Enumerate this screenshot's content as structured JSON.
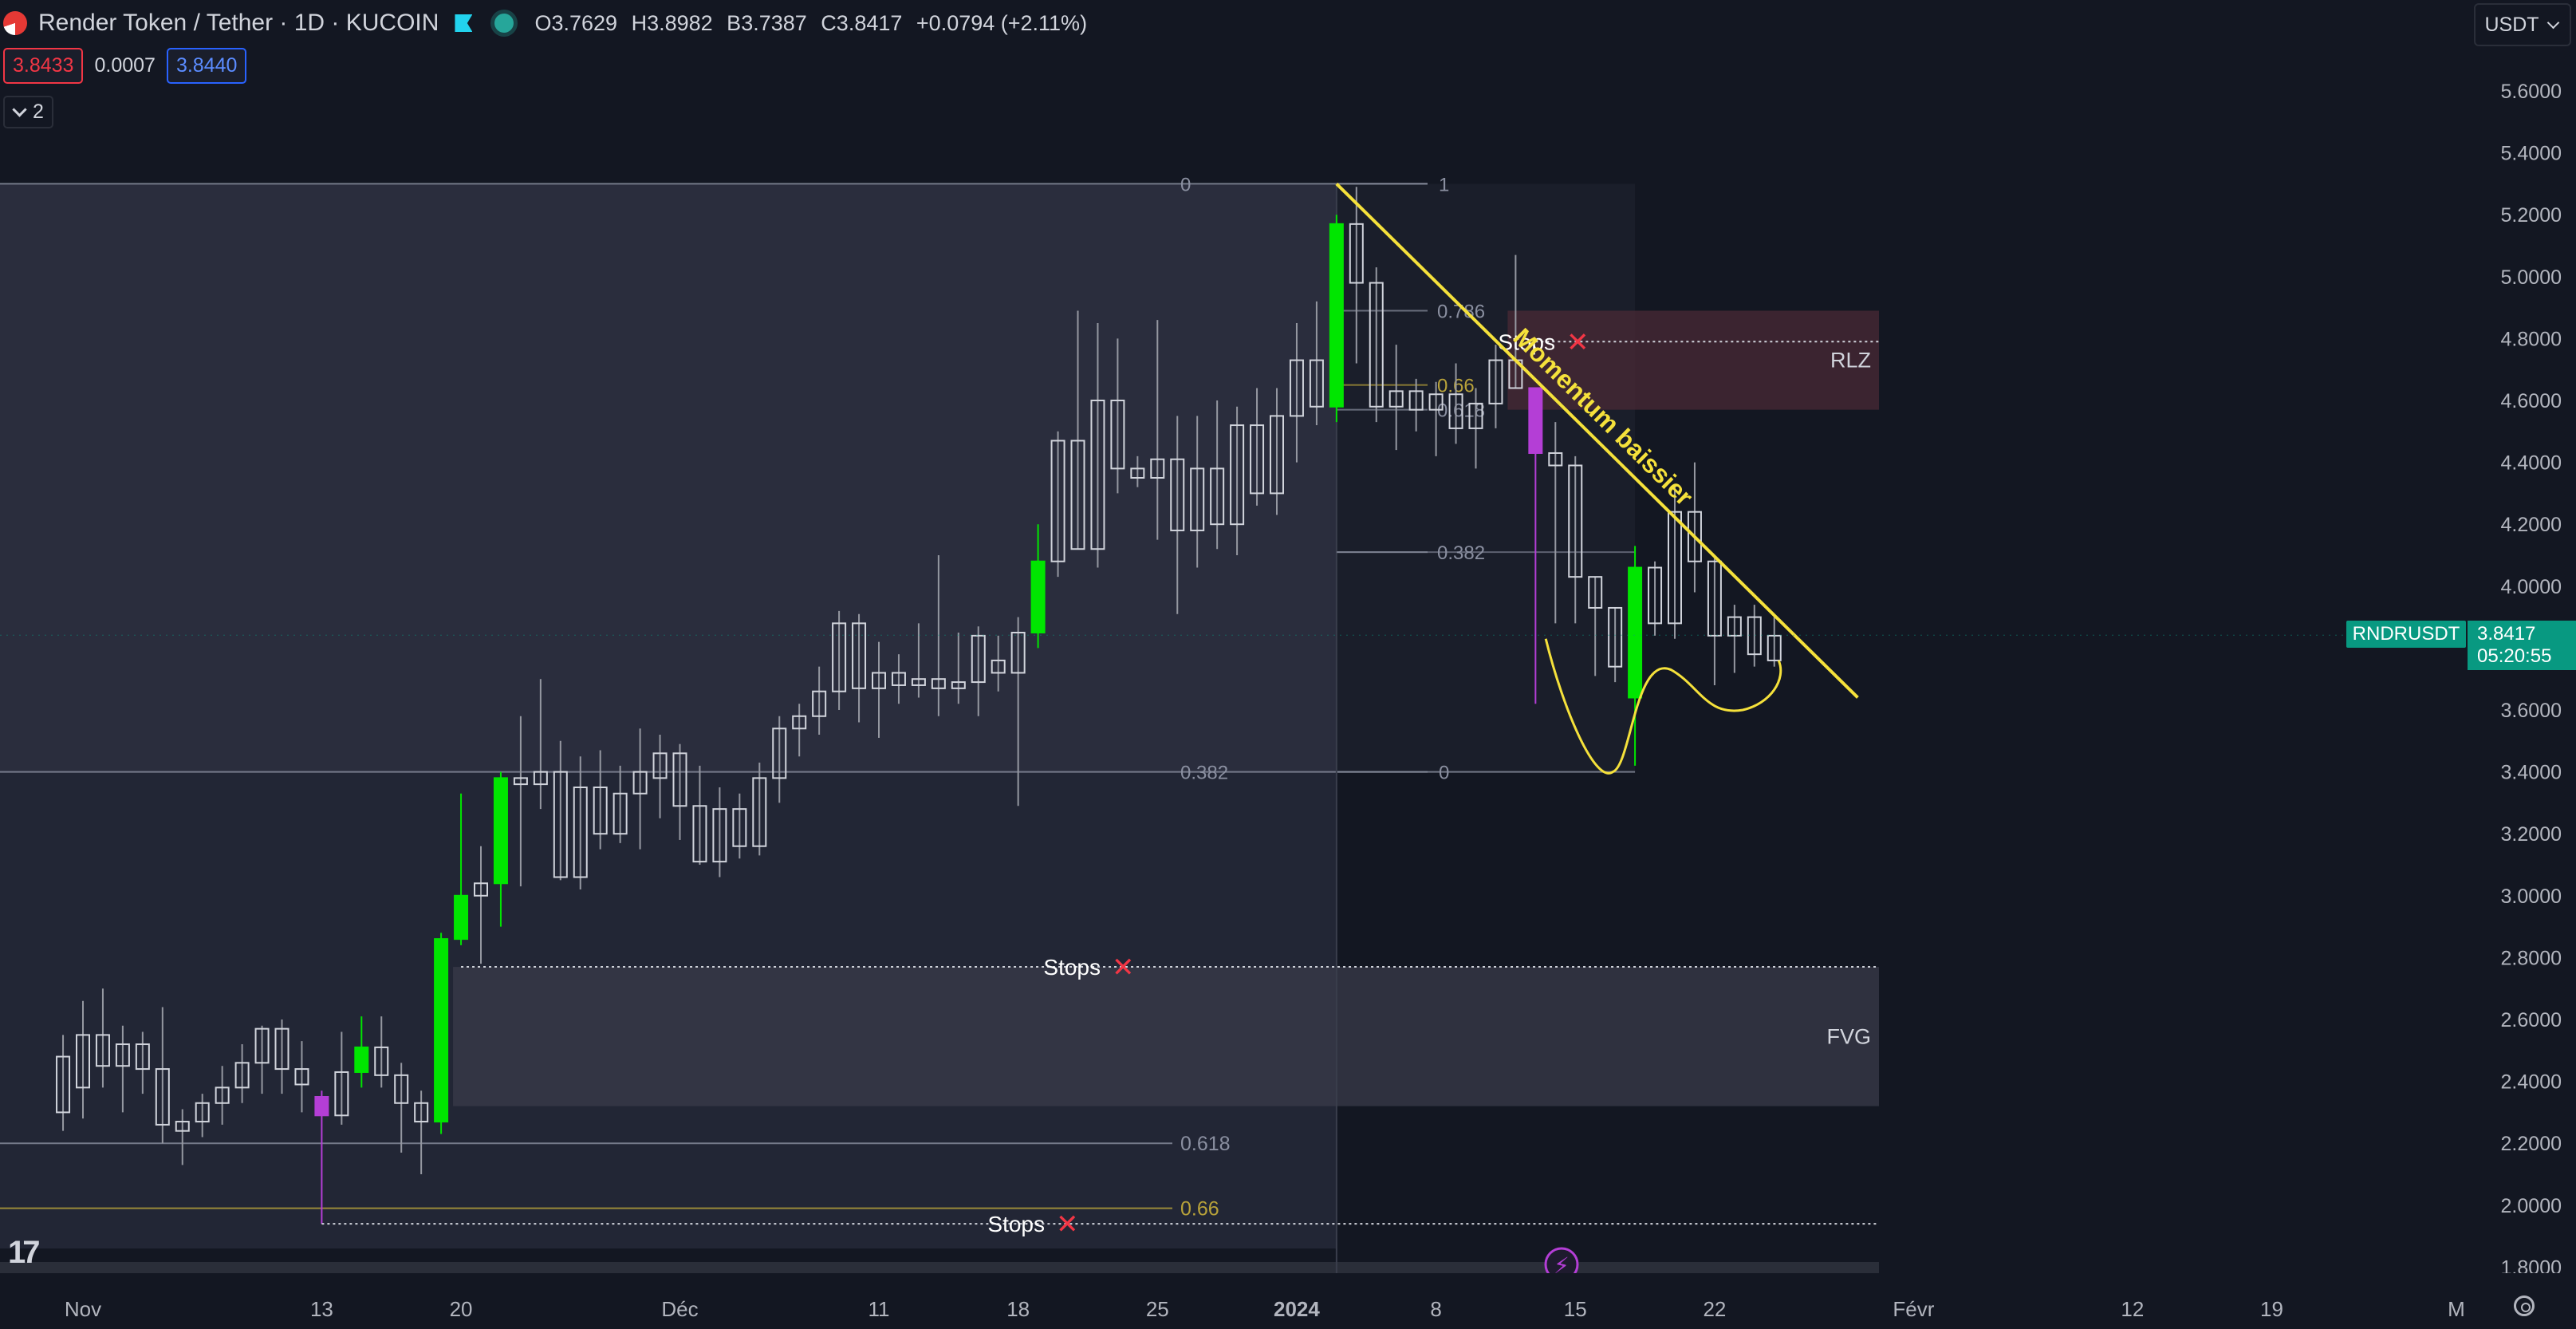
{
  "header": {
    "title": "Render Token / Tether · 1D · KUCOIN",
    "ohlc": {
      "o_label": "O",
      "o_value": "3.7629",
      "h_label": "H",
      "h_value": "3.8982",
      "b_label": "B",
      "b_value": "3.7387",
      "c_label": "C",
      "c_value": "3.8417",
      "change": "+0.0794 (+2.11%)"
    },
    "bid": "3.8433",
    "spread": "0.0007",
    "ask": "3.8440",
    "collapse_label": "2",
    "currency": "USDT"
  },
  "last_price": {
    "symbol": "RNDRUSDT",
    "price": "3.8417",
    "countdown": "05:20:55",
    "value": 3.8417
  },
  "colors": {
    "background": "#131722",
    "bull": "#00e600",
    "neutral_candle": "#d1d4dc",
    "purple_candle": "#b43ed6",
    "trend_line": "#f5e13b",
    "rlz_zone": "#4a2a36",
    "fvg_zone": "#3a3b4a",
    "last_price": "#089981"
  },
  "chart_data": {
    "type": "candlestick",
    "timeframe": "1D",
    "y_axis_ticks": [
      "5.6000",
      "5.4000",
      "5.2000",
      "5.0000",
      "4.8000",
      "4.6000",
      "4.4000",
      "4.2000",
      "4.0000",
      "3.8000",
      "3.6000",
      "3.4000",
      "3.2000",
      "3.0000",
      "2.8000",
      "2.6000",
      "2.4000",
      "2.2000",
      "2.0000",
      "1.8000"
    ],
    "ylim": [
      1.76,
      5.74
    ],
    "x_axis_labels": [
      {
        "label": "Nov",
        "date": "2023-11-01"
      },
      {
        "label": "13",
        "date": "2023-11-13"
      },
      {
        "label": "20",
        "date": "2023-11-20"
      },
      {
        "label": "Déc",
        "date": "2023-12-01"
      },
      {
        "label": "11",
        "date": "2023-12-11"
      },
      {
        "label": "18",
        "date": "2023-12-18"
      },
      {
        "label": "25",
        "date": "2023-12-25"
      },
      {
        "label": "2024",
        "date": "2024-01-01"
      },
      {
        "label": "8",
        "date": "2024-01-08"
      },
      {
        "label": "15",
        "date": "2024-01-15"
      },
      {
        "label": "22",
        "date": "2024-01-22"
      },
      {
        "label": "Févr",
        "date": "2024-02-01"
      },
      {
        "label": "12",
        "date": "2024-02-12"
      },
      {
        "label": "19",
        "date": "2024-02-19"
      },
      {
        "label": "M",
        "date": "2024-03-01"
      }
    ],
    "candles": [
      {
        "date": "2023-10-31",
        "o": 2.48,
        "h": 2.55,
        "l": 2.24,
        "c": 2.3,
        "style": "neutral"
      },
      {
        "date": "2023-11-01",
        "o": 2.38,
        "h": 2.66,
        "l": 2.28,
        "c": 2.55,
        "style": "neutral"
      },
      {
        "date": "2023-11-02",
        "o": 2.55,
        "h": 2.7,
        "l": 2.38,
        "c": 2.45,
        "style": "neutral"
      },
      {
        "date": "2023-11-03",
        "o": 2.45,
        "h": 2.58,
        "l": 2.3,
        "c": 2.52,
        "style": "neutral"
      },
      {
        "date": "2023-11-04",
        "o": 2.52,
        "h": 2.56,
        "l": 2.36,
        "c": 2.44,
        "style": "neutral"
      },
      {
        "date": "2023-11-05",
        "o": 2.44,
        "h": 2.64,
        "l": 2.2,
        "c": 2.26,
        "style": "neutral"
      },
      {
        "date": "2023-11-06",
        "o": 2.24,
        "h": 2.31,
        "l": 2.13,
        "c": 2.27,
        "style": "neutral"
      },
      {
        "date": "2023-11-07",
        "o": 2.27,
        "h": 2.36,
        "l": 2.22,
        "c": 2.33,
        "style": "neutral"
      },
      {
        "date": "2023-11-08",
        "o": 2.33,
        "h": 2.45,
        "l": 2.26,
        "c": 2.38,
        "style": "neutral"
      },
      {
        "date": "2023-11-09",
        "o": 2.38,
        "h": 2.52,
        "l": 2.33,
        "c": 2.46,
        "style": "neutral"
      },
      {
        "date": "2023-11-10",
        "o": 2.46,
        "h": 2.58,
        "l": 2.36,
        "c": 2.57,
        "style": "neutral"
      },
      {
        "date": "2023-11-11",
        "o": 2.57,
        "h": 2.6,
        "l": 2.36,
        "c": 2.44,
        "style": "neutral"
      },
      {
        "date": "2023-11-12",
        "o": 2.44,
        "h": 2.53,
        "l": 2.3,
        "c": 2.39,
        "style": "neutral"
      },
      {
        "date": "2023-11-13",
        "o": 2.35,
        "h": 2.37,
        "l": 1.94,
        "c": 2.29,
        "style": "purple"
      },
      {
        "date": "2023-11-14",
        "o": 2.29,
        "h": 2.56,
        "l": 2.26,
        "c": 2.43,
        "style": "neutral"
      },
      {
        "date": "2023-11-15",
        "o": 2.43,
        "h": 2.61,
        "l": 2.38,
        "c": 2.51,
        "style": "bull"
      },
      {
        "date": "2023-11-16",
        "o": 2.51,
        "h": 2.61,
        "l": 2.38,
        "c": 2.42,
        "style": "neutral"
      },
      {
        "date": "2023-11-17",
        "o": 2.42,
        "h": 2.46,
        "l": 2.17,
        "c": 2.33,
        "style": "neutral"
      },
      {
        "date": "2023-11-18",
        "o": 2.33,
        "h": 2.37,
        "l": 2.1,
        "c": 2.27,
        "style": "neutral"
      },
      {
        "date": "2023-11-19",
        "o": 2.27,
        "h": 2.88,
        "l": 2.23,
        "c": 2.86,
        "style": "bull"
      },
      {
        "date": "2023-11-20",
        "o": 2.86,
        "h": 3.33,
        "l": 2.84,
        "c": 3.0,
        "style": "bull"
      },
      {
        "date": "2023-11-21",
        "o": 3.0,
        "h": 3.16,
        "l": 2.78,
        "c": 3.04,
        "style": "neutral"
      },
      {
        "date": "2023-11-22",
        "o": 3.04,
        "h": 3.4,
        "l": 2.9,
        "c": 3.38,
        "style": "bull"
      },
      {
        "date": "2023-11-23",
        "o": 3.38,
        "h": 3.58,
        "l": 3.03,
        "c": 3.36,
        "style": "neutral"
      },
      {
        "date": "2023-11-24",
        "o": 3.36,
        "h": 3.7,
        "l": 3.28,
        "c": 3.4,
        "style": "neutral"
      },
      {
        "date": "2023-11-25",
        "o": 3.4,
        "h": 3.5,
        "l": 3.05,
        "c": 3.06,
        "style": "neutral"
      },
      {
        "date": "2023-11-26",
        "o": 3.06,
        "h": 3.45,
        "l": 3.02,
        "c": 3.35,
        "style": "neutral"
      },
      {
        "date": "2023-11-27",
        "o": 3.35,
        "h": 3.47,
        "l": 3.15,
        "c": 3.2,
        "style": "neutral"
      },
      {
        "date": "2023-11-28",
        "o": 3.2,
        "h": 3.42,
        "l": 3.17,
        "c": 3.33,
        "style": "neutral"
      },
      {
        "date": "2023-11-29",
        "o": 3.33,
        "h": 3.54,
        "l": 3.15,
        "c": 3.4,
        "style": "neutral"
      },
      {
        "date": "2023-11-30",
        "o": 3.38,
        "h": 3.52,
        "l": 3.25,
        "c": 3.46,
        "style": "neutral"
      },
      {
        "date": "2023-12-01",
        "o": 3.46,
        "h": 3.49,
        "l": 3.18,
        "c": 3.29,
        "style": "neutral"
      },
      {
        "date": "2023-12-02",
        "o": 3.29,
        "h": 3.42,
        "l": 3.1,
        "c": 3.11,
        "style": "neutral"
      },
      {
        "date": "2023-12-03",
        "o": 3.11,
        "h": 3.35,
        "l": 3.06,
        "c": 3.28,
        "style": "neutral"
      },
      {
        "date": "2023-12-04",
        "o": 3.28,
        "h": 3.33,
        "l": 3.12,
        "c": 3.16,
        "style": "neutral"
      },
      {
        "date": "2023-12-05",
        "o": 3.16,
        "h": 3.43,
        "l": 3.13,
        "c": 3.38,
        "style": "neutral"
      },
      {
        "date": "2023-12-06",
        "o": 3.38,
        "h": 3.58,
        "l": 3.3,
        "c": 3.54,
        "style": "neutral"
      },
      {
        "date": "2023-12-07",
        "o": 3.54,
        "h": 3.62,
        "l": 3.45,
        "c": 3.58,
        "style": "neutral"
      },
      {
        "date": "2023-12-08",
        "o": 3.58,
        "h": 3.74,
        "l": 3.52,
        "c": 3.66,
        "style": "neutral"
      },
      {
        "date": "2023-12-09",
        "o": 3.66,
        "h": 3.92,
        "l": 3.6,
        "c": 3.88,
        "style": "neutral"
      },
      {
        "date": "2023-12-10",
        "o": 3.88,
        "h": 3.91,
        "l": 3.56,
        "c": 3.67,
        "style": "neutral"
      },
      {
        "date": "2023-12-11",
        "o": 3.67,
        "h": 3.82,
        "l": 3.51,
        "c": 3.72,
        "style": "neutral"
      },
      {
        "date": "2023-12-12",
        "o": 3.72,
        "h": 3.78,
        "l": 3.62,
        "c": 3.68,
        "style": "neutral"
      },
      {
        "date": "2023-12-13",
        "o": 3.68,
        "h": 3.88,
        "l": 3.64,
        "c": 3.7,
        "style": "neutral"
      },
      {
        "date": "2023-12-14",
        "o": 3.7,
        "h": 4.1,
        "l": 3.58,
        "c": 3.67,
        "style": "neutral"
      },
      {
        "date": "2023-12-15",
        "o": 3.67,
        "h": 3.85,
        "l": 3.62,
        "c": 3.69,
        "style": "neutral"
      },
      {
        "date": "2023-12-16",
        "o": 3.69,
        "h": 3.87,
        "l": 3.58,
        "c": 3.84,
        "style": "neutral"
      },
      {
        "date": "2023-12-17",
        "o": 3.76,
        "h": 3.84,
        "l": 3.66,
        "c": 3.72,
        "style": "neutral"
      },
      {
        "date": "2023-12-18",
        "o": 3.72,
        "h": 3.9,
        "l": 3.29,
        "c": 3.85,
        "style": "neutral"
      },
      {
        "date": "2023-12-19",
        "o": 3.85,
        "h": 4.2,
        "l": 3.8,
        "c": 4.08,
        "style": "bull"
      },
      {
        "date": "2023-12-20",
        "o": 4.08,
        "h": 4.5,
        "l": 4.03,
        "c": 4.47,
        "style": "neutral"
      },
      {
        "date": "2023-12-21",
        "o": 4.47,
        "h": 4.89,
        "l": 4.12,
        "c": 4.12,
        "style": "neutral"
      },
      {
        "date": "2023-12-22",
        "o": 4.12,
        "h": 4.85,
        "l": 4.06,
        "c": 4.6,
        "style": "neutral"
      },
      {
        "date": "2023-12-23",
        "o": 4.6,
        "h": 4.8,
        "l": 4.3,
        "c": 4.38,
        "style": "neutral"
      },
      {
        "date": "2023-12-24",
        "o": 4.38,
        "h": 4.42,
        "l": 4.32,
        "c": 4.35,
        "style": "neutral"
      },
      {
        "date": "2023-12-25",
        "o": 4.35,
        "h": 4.86,
        "l": 4.15,
        "c": 4.41,
        "style": "neutral"
      },
      {
        "date": "2023-12-26",
        "o": 4.41,
        "h": 4.55,
        "l": 3.91,
        "c": 4.18,
        "style": "neutral"
      },
      {
        "date": "2023-12-27",
        "o": 4.18,
        "h": 4.55,
        "l": 4.06,
        "c": 4.38,
        "style": "neutral"
      },
      {
        "date": "2023-12-28",
        "o": 4.38,
        "h": 4.6,
        "l": 4.12,
        "c": 4.2,
        "style": "neutral"
      },
      {
        "date": "2023-12-29",
        "o": 4.2,
        "h": 4.58,
        "l": 4.1,
        "c": 4.52,
        "style": "neutral"
      },
      {
        "date": "2023-12-30",
        "o": 4.52,
        "h": 4.64,
        "l": 4.26,
        "c": 4.3,
        "style": "neutral"
      },
      {
        "date": "2023-12-31",
        "o": 4.3,
        "h": 4.64,
        "l": 4.23,
        "c": 4.55,
        "style": "neutral"
      },
      {
        "date": "2024-01-01",
        "o": 4.55,
        "h": 4.85,
        "l": 4.4,
        "c": 4.73,
        "style": "neutral"
      },
      {
        "date": "2024-01-02",
        "o": 4.73,
        "h": 4.92,
        "l": 4.52,
        "c": 4.58,
        "style": "neutral"
      },
      {
        "date": "2024-01-03",
        "o": 4.58,
        "h": 5.2,
        "l": 4.53,
        "c": 5.17,
        "style": "bull"
      },
      {
        "date": "2024-01-04",
        "o": 5.17,
        "h": 5.29,
        "l": 4.72,
        "c": 4.98,
        "style": "neutral"
      },
      {
        "date": "2024-01-05",
        "o": 4.98,
        "h": 5.03,
        "l": 4.53,
        "c": 4.58,
        "style": "neutral"
      },
      {
        "date": "2024-01-06",
        "o": 4.58,
        "h": 4.78,
        "l": 4.44,
        "c": 4.63,
        "style": "neutral"
      },
      {
        "date": "2024-01-07",
        "o": 4.63,
        "h": 4.67,
        "l": 4.5,
        "c": 4.57,
        "style": "neutral"
      },
      {
        "date": "2024-01-08",
        "o": 4.57,
        "h": 4.66,
        "l": 4.42,
        "c": 4.62,
        "style": "neutral"
      },
      {
        "date": "2024-01-09",
        "o": 4.62,
        "h": 4.72,
        "l": 4.46,
        "c": 4.51,
        "style": "neutral"
      },
      {
        "date": "2024-01-10",
        "o": 4.51,
        "h": 4.64,
        "l": 4.38,
        "c": 4.59,
        "style": "neutral"
      },
      {
        "date": "2024-01-11",
        "o": 4.59,
        "h": 4.78,
        "l": 4.51,
        "c": 4.73,
        "style": "neutral"
      },
      {
        "date": "2024-01-12",
        "o": 4.73,
        "h": 5.07,
        "l": 4.64,
        "c": 4.64,
        "style": "neutral"
      },
      {
        "date": "2024-01-13",
        "o": 4.64,
        "h": 4.64,
        "l": 3.62,
        "c": 4.43,
        "style": "purple"
      },
      {
        "date": "2024-01-14",
        "o": 4.43,
        "h": 4.53,
        "l": 3.88,
        "c": 4.39,
        "style": "neutral"
      },
      {
        "date": "2024-01-15",
        "o": 4.39,
        "h": 4.42,
        "l": 3.88,
        "c": 4.03,
        "style": "neutral"
      },
      {
        "date": "2024-01-16",
        "o": 4.03,
        "h": 4.03,
        "l": 3.71,
        "c": 3.93,
        "style": "neutral"
      },
      {
        "date": "2024-01-17",
        "o": 3.93,
        "h": 3.93,
        "l": 3.69,
        "c": 3.74,
        "style": "neutral"
      },
      {
        "date": "2024-01-18",
        "o": 3.64,
        "h": 4.13,
        "l": 3.42,
        "c": 4.06,
        "style": "bull"
      },
      {
        "date": "2024-01-19",
        "o": 4.06,
        "h": 4.08,
        "l": 3.84,
        "c": 3.88,
        "style": "neutral"
      },
      {
        "date": "2024-01-20",
        "o": 3.88,
        "h": 4.33,
        "l": 3.83,
        "c": 4.24,
        "style": "neutral"
      },
      {
        "date": "2024-01-21",
        "o": 4.24,
        "h": 4.4,
        "l": 3.98,
        "c": 4.08,
        "style": "neutral"
      },
      {
        "date": "2024-01-22",
        "o": 4.08,
        "h": 4.09,
        "l": 3.68,
        "c": 3.84,
        "style": "neutral"
      },
      {
        "date": "2024-01-23",
        "o": 3.84,
        "h": 3.94,
        "l": 3.72,
        "c": 3.9,
        "style": "neutral"
      },
      {
        "date": "2024-01-24",
        "o": 3.9,
        "h": 3.94,
        "l": 3.74,
        "c": 3.78,
        "style": "neutral"
      },
      {
        "date": "2024-01-25",
        "o": 3.76,
        "h": 3.9,
        "l": 3.74,
        "c": 3.84,
        "style": "neutral"
      }
    ],
    "horizontal_levels": [
      {
        "value": 5.3,
        "label": "",
        "color": "#8a8fa0"
      },
      {
        "value": 3.4,
        "label": "",
        "color": "#8a8fa0"
      },
      {
        "value": 2.2,
        "label": "0.618",
        "color": "#8a8fa0"
      },
      {
        "value": 1.99,
        "label": "0.66",
        "color": "#b8a23a"
      }
    ],
    "fib_retracement": {
      "levels": [
        {
          "ratio_label": "1",
          "value": 5.3
        },
        {
          "ratio_label": "0.786",
          "value": 4.89
        },
        {
          "ratio_label": "0.66",
          "value": 4.65
        },
        {
          "ratio_label": "0.618",
          "value": 4.57
        },
        {
          "ratio_label": "0.382",
          "value": 4.11
        },
        {
          "ratio_label": "0",
          "value": 3.4
        }
      ],
      "left_label": "0",
      "left_label_bottom": "0.382"
    },
    "zones": [
      {
        "name": "RLZ",
        "top": 4.89,
        "bottom": 4.57
      },
      {
        "name": "FVG",
        "top": 2.77,
        "bottom": 2.32
      }
    ],
    "stops": [
      {
        "label": "Stops",
        "marker": "✕",
        "value": 4.79
      },
      {
        "label": "Stops",
        "marker": "✕",
        "value": 2.77
      },
      {
        "label": "Stops",
        "marker": "✕",
        "value": 1.94
      }
    ],
    "trend_line": {
      "label": "Momentum baissier",
      "start": {
        "date": "2024-01-03",
        "value": 5.3
      },
      "end": {
        "date": "2024-02-01",
        "value": 3.64
      }
    }
  }
}
